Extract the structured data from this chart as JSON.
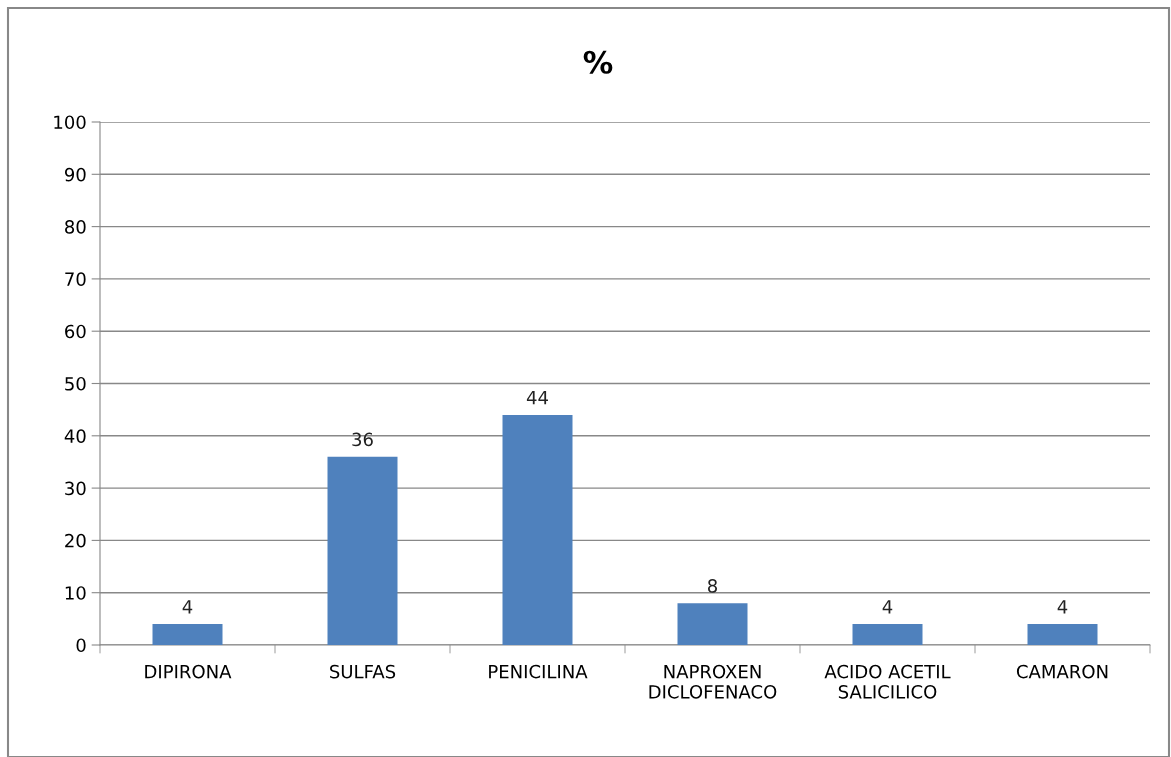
{
  "chart_data": {
    "type": "bar",
    "title": "%",
    "categories": [
      "DIPIRONA",
      "SULFAS",
      "PENICILINA",
      "NAPROXEN\nDICLOFENACO",
      "ACIDO ACETIL\nSALICILICO",
      "CAMARON"
    ],
    "values": [
      4,
      36,
      44,
      8,
      4,
      4
    ],
    "color": "#4f81bd",
    "ylim": [
      0,
      100
    ],
    "yticks": [
      0,
      10,
      20,
      30,
      40,
      50,
      60,
      70,
      80,
      90,
      100
    ],
    "grid": "y",
    "data_labels": true
  }
}
